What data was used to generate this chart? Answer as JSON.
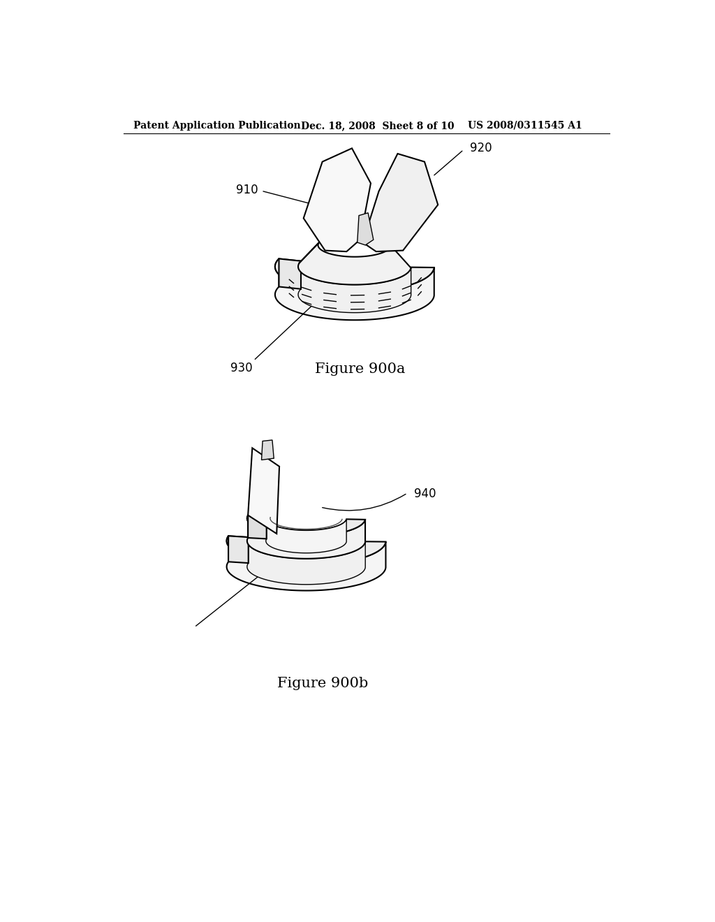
{
  "bg_color": "#ffffff",
  "line_color": "#000000",
  "header_left": "Patent Application Publication",
  "header_mid": "Dec. 18, 2008  Sheet 8 of 10",
  "header_right": "US 2008/0311545 A1",
  "fig_a_label": "Figure 900a",
  "fig_b_label": "Figure 900b",
  "label_910": "910",
  "label_920": "920",
  "label_930": "930",
  "label_940": "940",
  "header_fontsize": 10,
  "label_fontsize": 12,
  "caption_fontsize": 15
}
